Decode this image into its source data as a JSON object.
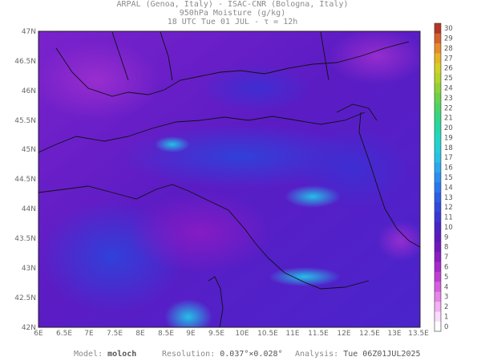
{
  "header": {
    "line1": "ARPAL (Genoa, Italy)  -  ISAC-CNR (Bologna, Italy)",
    "line2": "950hPa Moisture (g/kg)",
    "line3": "18 UTC Tue 01 JUL  -  τ = 12h"
  },
  "map": {
    "lat_labels": [
      "47N",
      "46.5N",
      "46N",
      "45.5N",
      "45N",
      "44.5N",
      "44N",
      "43.5N",
      "43N",
      "42.5N",
      "42N"
    ],
    "lon_labels": [
      "6E",
      "6.5E",
      "7E",
      "7.5E",
      "8E",
      "8.5E",
      "9E",
      "9.5E",
      "10E",
      "10.5E",
      "11E",
      "11.5E",
      "12E",
      "12.5E",
      "13E",
      "13.5E"
    ],
    "lat_range": [
      42,
      47
    ],
    "lon_range": [
      6,
      13.5
    ],
    "watermark": "ARPAL"
  },
  "colorbar": {
    "labels": [
      "0",
      "1",
      "2",
      "3",
      "4",
      "5",
      "6",
      "7",
      "8",
      "9",
      "10",
      "11",
      "12",
      "13",
      "14",
      "15",
      "16",
      "17",
      "18",
      "19",
      "20",
      "21",
      "22",
      "23",
      "24",
      "25",
      "26",
      "27",
      "28",
      "29",
      "30"
    ],
    "colors": [
      "#ffffff",
      "#fcdcfc",
      "#f4b0f4",
      "#e884ea",
      "#d65ee0",
      "#c23cd6",
      "#a828cc",
      "#8c1cc4",
      "#7018bc",
      "#5c18c0",
      "#4a22c8",
      "#3c34d4",
      "#3248de",
      "#2c5ee6",
      "#2a76ee",
      "#2a8ef2",
      "#2aa8f0",
      "#28c0ea",
      "#22d0d8",
      "#1ed8c4",
      "#22d8a6",
      "#30d886",
      "#4ad466",
      "#6ad24a",
      "#90d236",
      "#b4d42a",
      "#d4d024",
      "#e8b424",
      "#e88c28",
      "#d8602a",
      "#b83424"
    ]
  },
  "footer": {
    "model_label": "Model:",
    "model_value": "moloch",
    "resolution_label": "Resolution:",
    "resolution_value": "0.037°×0.028°",
    "analysis_label": "Analysis:",
    "analysis_value": "Tue 06Z01JUL2025"
  }
}
